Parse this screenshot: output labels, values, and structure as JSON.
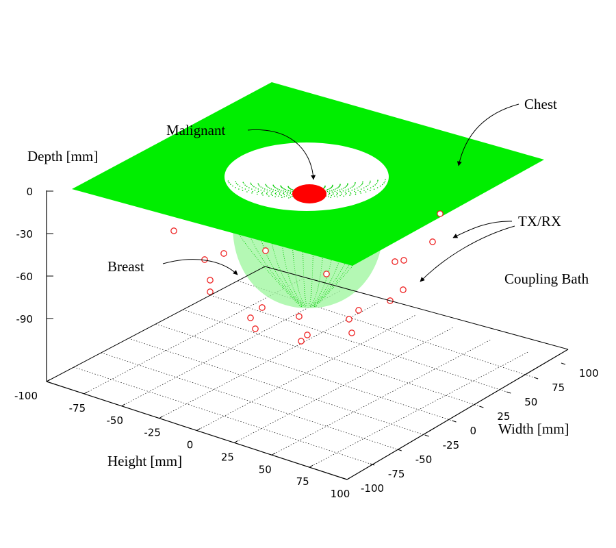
{
  "chart_data": {
    "type": "scatter",
    "title": "",
    "annotations": {
      "chest": "Chest",
      "malignant": "Malignant",
      "txrx": "TX/RX",
      "breast": "Breast",
      "coupling": "Coupling Bath"
    },
    "axes": {
      "depth": {
        "label": "Depth [mm]",
        "ticks": [
          "0",
          "-30",
          "-60",
          "-90"
        ],
        "range": [
          -120,
          0
        ]
      },
      "height": {
        "label": "Height [mm]",
        "ticks": [
          "-100",
          "-75",
          "-50",
          "-25",
          "0",
          "25",
          "50",
          "75",
          "100"
        ],
        "range": [
          -100,
          100
        ]
      },
      "width": {
        "label": "Width [mm]",
        "ticks": [
          "-100",
          "-75",
          "-50",
          "-25",
          "0",
          "25",
          "50",
          "75",
          "100"
        ],
        "range": [
          -100,
          100
        ]
      }
    },
    "grid": true,
    "series": [
      {
        "type": "surface",
        "color": "#00ee00",
        "surfaces": [
          "chest-plane",
          "breast-hemisphere"
        ]
      },
      {
        "name": "TX/RX",
        "type": "points",
        "color": "#ee2222",
        "marker": "open-circle"
      },
      {
        "name": "Malignant",
        "type": "point",
        "color": "#ff0000",
        "marker": "filled-ellipse"
      }
    ]
  }
}
